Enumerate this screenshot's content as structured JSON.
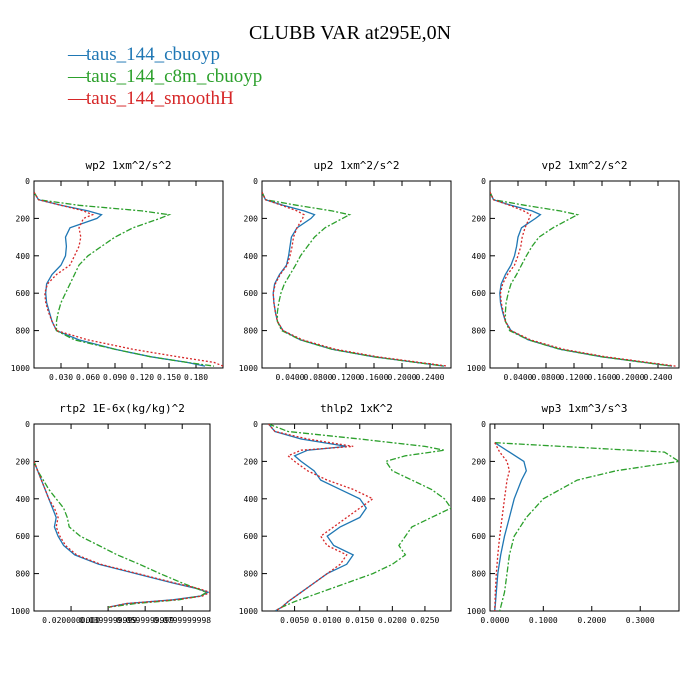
{
  "page": {
    "title": "CLUBB VAR at295E,0N",
    "colors": {
      "series1": "#1f77b4",
      "series2": "#2ca02c",
      "series3": "#d62728"
    }
  },
  "chart_data": [
    {
      "type": "line",
      "title": "wp2  1xm^2/s^2",
      "xlim": [
        0,
        0.21
      ],
      "ylim": [
        0,
        1000
      ],
      "y_inverted": true,
      "xticks": [
        0.03,
        0.06,
        0.09,
        0.12,
        0.15,
        0.18
      ],
      "xtick_labels": [
        "0.030",
        "0.060",
        "0.090",
        "0.120",
        "0.150",
        "0.180"
      ],
      "yticks": [
        0,
        200,
        400,
        600,
        800,
        1000
      ],
      "y": [
        60,
        100,
        130,
        160,
        180,
        200,
        250,
        300,
        350,
        400,
        450,
        500,
        550,
        600,
        650,
        700,
        750,
        800,
        850,
        900,
        940,
        970,
        990
      ],
      "series": [
        {
          "name": "taus_144_cbuoyp",
          "color": "#1f77b4",
          "style": "solid",
          "x": [
            0.0,
            0.005,
            0.03,
            0.06,
            0.075,
            0.07,
            0.04,
            0.035,
            0.036,
            0.035,
            0.03,
            0.02,
            0.014,
            0.013,
            0.014,
            0.017,
            0.02,
            0.025,
            0.05,
            0.09,
            0.13,
            0.17,
            0.19
          ]
        },
        {
          "name": "taus_144_c8m_cbuoyp",
          "color": "#2ca02c",
          "style": "dashdot",
          "x": [
            0.0,
            0.005,
            0.05,
            0.12,
            0.15,
            0.14,
            0.11,
            0.09,
            0.075,
            0.06,
            0.05,
            0.045,
            0.04,
            0.035,
            0.03,
            0.027,
            0.025,
            0.025,
            0.045,
            0.09,
            0.13,
            0.17,
            0.2
          ]
        },
        {
          "name": "taus_144_smoothH",
          "color": "#d62728",
          "style": "dotted",
          "x": [
            0.0,
            0.005,
            0.03,
            0.055,
            0.065,
            0.055,
            0.05,
            0.052,
            0.05,
            0.045,
            0.04,
            0.025,
            0.015,
            0.012,
            0.013,
            0.016,
            0.02,
            0.025,
            0.06,
            0.11,
            0.16,
            0.2,
            0.21
          ]
        }
      ]
    },
    {
      "type": "line",
      "title": "up2  1xm^2/s^2",
      "xlim": [
        0,
        0.27
      ],
      "ylim": [
        0,
        1000
      ],
      "y_inverted": true,
      "xticks": [
        0.04,
        0.08,
        0.12,
        0.16,
        0.2,
        0.24
      ],
      "xtick_labels": [
        "0.0400",
        "0.0800",
        "0.1200",
        "0.1600",
        "0.2000",
        "0.2400"
      ],
      "yticks": [
        0,
        200,
        400,
        600,
        800,
        1000
      ],
      "y": [
        60,
        100,
        130,
        160,
        180,
        200,
        250,
        300,
        350,
        400,
        450,
        500,
        550,
        600,
        650,
        700,
        750,
        800,
        850,
        900,
        940,
        970,
        990
      ],
      "series": [
        {
          "name": "taus_144_cbuoyp",
          "color": "#1f77b4",
          "style": "solid",
          "x": [
            0.0,
            0.005,
            0.03,
            0.06,
            0.075,
            0.07,
            0.05,
            0.042,
            0.04,
            0.038,
            0.035,
            0.025,
            0.018,
            0.016,
            0.017,
            0.019,
            0.022,
            0.03,
            0.055,
            0.1,
            0.16,
            0.22,
            0.26
          ]
        },
        {
          "name": "taus_144_c8m_cbuoyp",
          "color": "#2ca02c",
          "style": "dashdot",
          "x": [
            0.0,
            0.005,
            0.05,
            0.1,
            0.125,
            0.115,
            0.09,
            0.075,
            0.065,
            0.055,
            0.048,
            0.04,
            0.032,
            0.027,
            0.024,
            0.022,
            0.022,
            0.028,
            0.055,
            0.1,
            0.16,
            0.22,
            0.26
          ]
        },
        {
          "name": "taus_144_smoothH",
          "color": "#d62728",
          "style": "dotted",
          "x": [
            0.0,
            0.005,
            0.028,
            0.05,
            0.06,
            0.058,
            0.05,
            0.045,
            0.043,
            0.04,
            0.036,
            0.026,
            0.019,
            0.016,
            0.017,
            0.019,
            0.022,
            0.03,
            0.058,
            0.105,
            0.165,
            0.225,
            0.265
          ]
        }
      ]
    },
    {
      "type": "line",
      "title": "vp2  1xm^2/s^2",
      "xlim": [
        0,
        0.27
      ],
      "ylim": [
        0,
        1000
      ],
      "y_inverted": true,
      "xticks": [
        0.04,
        0.08,
        0.12,
        0.16,
        0.2,
        0.24
      ],
      "xtick_labels": [
        "0.0400",
        "0.0800",
        "0.1200",
        "0.1600",
        "0.2000",
        "0.2400"
      ],
      "yticks": [
        0,
        200,
        400,
        600,
        800,
        1000
      ],
      "y": [
        60,
        100,
        130,
        160,
        180,
        200,
        250,
        300,
        350,
        400,
        450,
        500,
        550,
        600,
        650,
        700,
        750,
        800,
        850,
        900,
        940,
        970,
        990
      ],
      "series": [
        {
          "name": "taus_144_cbuoyp",
          "color": "#1f77b4",
          "style": "solid",
          "x": [
            0.0,
            0.005,
            0.03,
            0.06,
            0.072,
            0.065,
            0.045,
            0.04,
            0.038,
            0.035,
            0.03,
            0.022,
            0.016,
            0.014,
            0.015,
            0.018,
            0.022,
            0.03,
            0.055,
            0.1,
            0.16,
            0.22,
            0.26
          ]
        },
        {
          "name": "taus_144_c8m_cbuoyp",
          "color": "#2ca02c",
          "style": "dashdot",
          "x": [
            0.0,
            0.005,
            0.05,
            0.1,
            0.125,
            0.115,
            0.09,
            0.07,
            0.06,
            0.052,
            0.045,
            0.038,
            0.03,
            0.026,
            0.023,
            0.022,
            0.022,
            0.028,
            0.055,
            0.1,
            0.16,
            0.22,
            0.26
          ]
        },
        {
          "name": "taus_144_smoothH",
          "color": "#d62728",
          "style": "dotted",
          "x": [
            0.0,
            0.005,
            0.028,
            0.048,
            0.058,
            0.056,
            0.05,
            0.046,
            0.044,
            0.04,
            0.035,
            0.025,
            0.018,
            0.015,
            0.016,
            0.019,
            0.022,
            0.03,
            0.058,
            0.105,
            0.165,
            0.225,
            0.265
          ]
        }
      ]
    },
    {
      "type": "line",
      "title": "rtp2  1E-6x(kg/kg)^2",
      "xlim": [
        0,
        0.095
      ],
      "ylim": [
        0,
        1000
      ],
      "y_inverted": true,
      "xticks": [
        0.02,
        0.04,
        0.06,
        0.08
      ],
      "xtick_labels": [
        "0.0200000000",
        "0.0399999999",
        "0.0599999999",
        "0.0799999998"
      ],
      "yticks": [
        0,
        200,
        400,
        600,
        800,
        1000
      ],
      "y": [
        200,
        250,
        300,
        350,
        400,
        450,
        500,
        550,
        600,
        650,
        700,
        750,
        800,
        850,
        880,
        900,
        920,
        940,
        960,
        980
      ],
      "series": [
        {
          "name": "taus_144_cbuoyp",
          "color": "#1f77b4",
          "style": "solid",
          "x": [
            0.0,
            0.002,
            0.004,
            0.006,
            0.008,
            0.01,
            0.012,
            0.011,
            0.013,
            0.016,
            0.022,
            0.035,
            0.055,
            0.075,
            0.088,
            0.094,
            0.09,
            0.075,
            0.05,
            0.04
          ]
        },
        {
          "name": "taus_144_c8m_cbuoyp",
          "color": "#2ca02c",
          "style": "dashdot",
          "x": [
            0.0,
            0.002,
            0.005,
            0.008,
            0.012,
            0.016,
            0.018,
            0.019,
            0.025,
            0.035,
            0.045,
            0.057,
            0.068,
            0.08,
            0.088,
            0.093,
            0.09,
            0.078,
            0.055,
            0.04
          ]
        },
        {
          "name": "taus_144_smoothH",
          "color": "#d62728",
          "style": "dotted",
          "x": [
            0.0,
            0.002,
            0.004,
            0.006,
            0.008,
            0.011,
            0.013,
            0.012,
            0.014,
            0.017,
            0.023,
            0.036,
            0.056,
            0.076,
            0.089,
            0.095,
            0.091,
            0.076,
            0.05,
            0.04
          ]
        }
      ]
    },
    {
      "type": "line",
      "title": "thlp2  1xK^2",
      "xlim": [
        0,
        0.029
      ],
      "ylim": [
        0,
        1000
      ],
      "y_inverted": true,
      "xticks": [
        0.005,
        0.01,
        0.015,
        0.02,
        0.025
      ],
      "xtick_labels": [
        "0.0050",
        "0.0100",
        "0.0150",
        "0.0200",
        "0.0250"
      ],
      "yticks": [
        0,
        200,
        400,
        600,
        800,
        1000
      ],
      "y": [
        0,
        40,
        80,
        120,
        140,
        170,
        200,
        250,
        300,
        350,
        400,
        450,
        500,
        550,
        600,
        650,
        700,
        750,
        800,
        850,
        900,
        950,
        980,
        1000
      ],
      "series": [
        {
          "name": "taus_144_cbuoyp",
          "color": "#1f77b4",
          "style": "solid",
          "x": [
            0.001,
            0.002,
            0.006,
            0.013,
            0.007,
            0.005,
            0.006,
            0.008,
            0.009,
            0.012,
            0.015,
            0.016,
            0.015,
            0.012,
            0.01,
            0.011,
            0.014,
            0.013,
            0.01,
            0.008,
            0.006,
            0.004,
            0.003,
            0.002
          ]
        },
        {
          "name": "taus_144_c8m_cbuoyp",
          "color": "#2ca02c",
          "style": "dashdot",
          "x": [
            0.001,
            0.004,
            0.015,
            0.025,
            0.028,
            0.022,
            0.019,
            0.02,
            0.023,
            0.026,
            0.028,
            0.029,
            0.026,
            0.023,
            0.022,
            0.021,
            0.022,
            0.02,
            0.017,
            0.013,
            0.009,
            0.005,
            0.003,
            0.002
          ]
        },
        {
          "name": "taus_144_smoothH",
          "color": "#d62728",
          "style": "dotted",
          "x": [
            0.001,
            0.002,
            0.007,
            0.014,
            0.006,
            0.004,
            0.005,
            0.007,
            0.01,
            0.014,
            0.017,
            0.015,
            0.013,
            0.011,
            0.009,
            0.01,
            0.013,
            0.012,
            0.01,
            0.008,
            0.006,
            0.004,
            0.003,
            0.002
          ]
        }
      ]
    },
    {
      "type": "line",
      "title": "wp3  1xm^3/s^3",
      "xlim": [
        -0.01,
        0.38
      ],
      "ylim": [
        0,
        1000
      ],
      "y_inverted": true,
      "xticks": [
        0.0,
        0.1,
        0.2,
        0.3
      ],
      "xtick_labels": [
        "0.0000",
        "0.1000",
        "0.2000",
        "0.3000"
      ],
      "yticks": [
        0,
        200,
        400,
        600,
        800,
        1000
      ],
      "y": [
        100,
        150,
        200,
        250,
        300,
        400,
        500,
        600,
        700,
        800,
        900,
        1000
      ],
      "series": [
        {
          "name": "taus_144_cbuoyp",
          "color": "#1f77b4",
          "style": "solid",
          "x": [
            0.0,
            0.03,
            0.06,
            0.065,
            0.055,
            0.04,
            0.03,
            0.02,
            0.012,
            0.006,
            0.003,
            0.0
          ]
        },
        {
          "name": "taus_144_c8m_cbuoyp",
          "color": "#2ca02c",
          "style": "dashdot",
          "x": [
            0.0,
            0.35,
            0.38,
            0.25,
            0.17,
            0.1,
            0.065,
            0.04,
            0.03,
            0.025,
            0.02,
            0.01
          ]
        },
        {
          "name": "taus_144_smoothH",
          "color": "#d62728",
          "style": "dotted",
          "x": [
            0.0,
            0.01,
            0.025,
            0.03,
            0.025,
            0.02,
            0.015,
            0.01,
            0.006,
            0.003,
            0.001,
            0.0
          ]
        }
      ]
    }
  ]
}
